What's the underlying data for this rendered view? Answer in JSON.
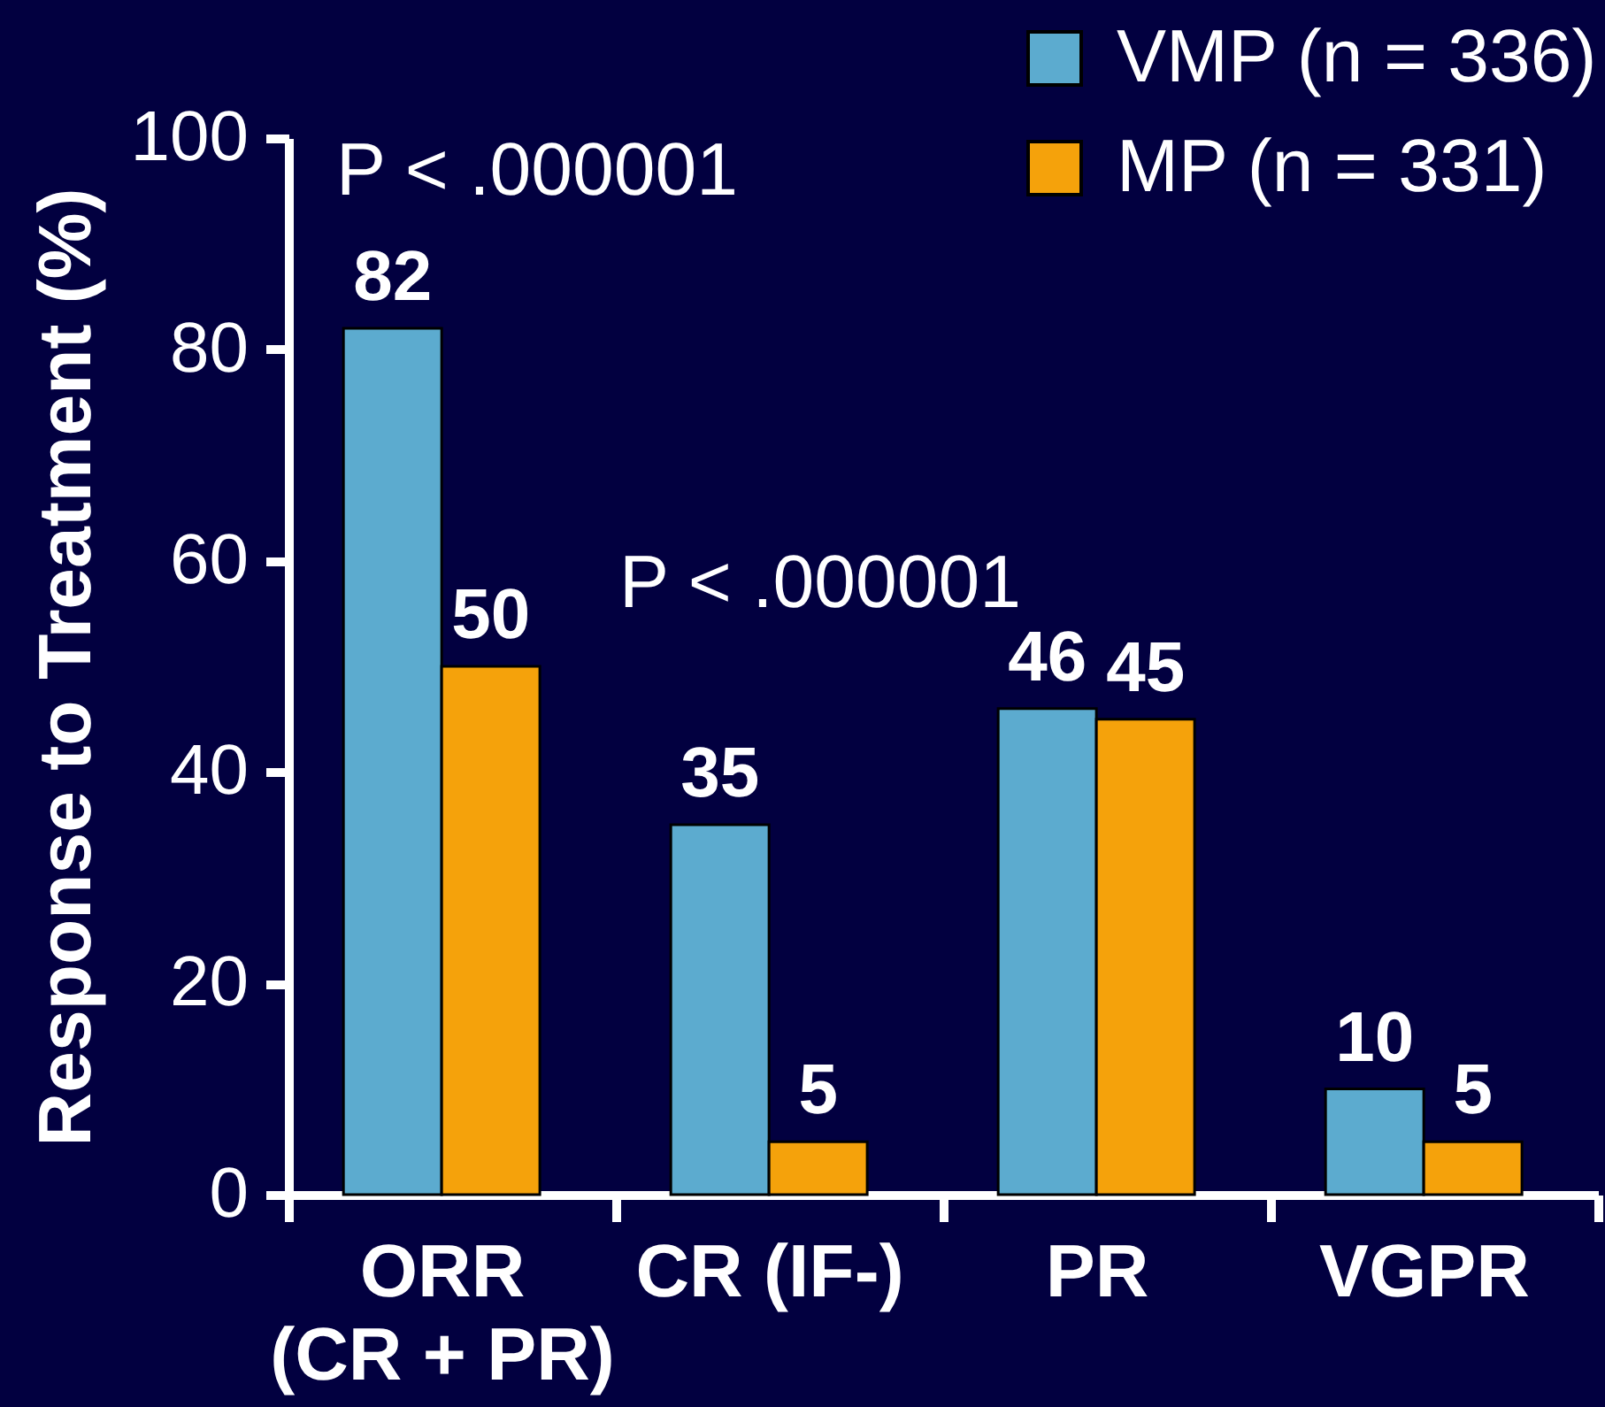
{
  "chart_data": {
    "type": "bar",
    "categories": [
      "ORR\n(CR + PR)",
      "CR (IF-)",
      "PR",
      "VGPR"
    ],
    "series": [
      {
        "name": "VMP (n = 336)",
        "color": "#5cabcf",
        "values": [
          82,
          35,
          46,
          10
        ]
      },
      {
        "name": "MP (n = 331)",
        "color": "#f5a20b",
        "values": [
          50,
          5,
          45,
          5
        ]
      }
    ],
    "ylabel": "Response to Treatment (%)",
    "ylim": [
      0,
      100
    ],
    "yticks": [
      0,
      20,
      40,
      60,
      80,
      100
    ],
    "data_labels": true,
    "legend": "top right",
    "annotations": [
      "P < .000001",
      "P < .000001"
    ]
  }
}
